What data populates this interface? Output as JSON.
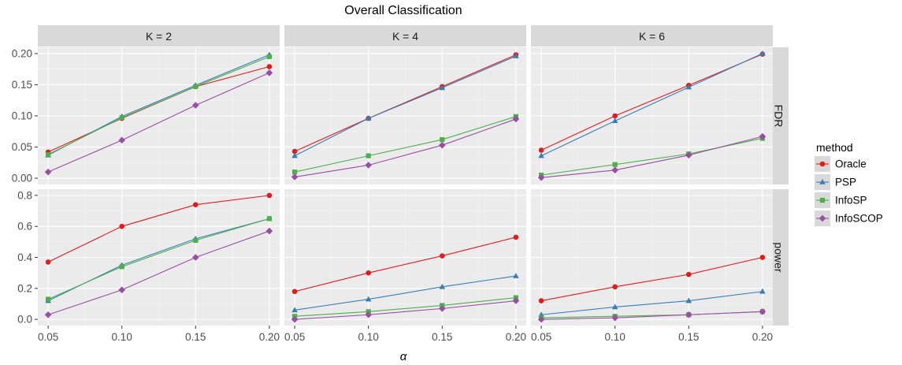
{
  "chart_data": {
    "type": "line",
    "title": "Overall Classification",
    "xlabel": "α",
    "x": [
      0.05,
      0.1,
      0.15,
      0.2
    ],
    "x_tick_labels": [
      "0.05",
      "0.10",
      "0.15",
      "0.20"
    ],
    "xlim": [
      0.043,
      0.207
    ],
    "columns": [
      "K = 2",
      "K = 4",
      "K = 6"
    ],
    "rows": [
      {
        "label": "FDR",
        "ylim": [
          -0.01,
          0.21
        ],
        "ticks": [
          0.0,
          0.05,
          0.1,
          0.15,
          0.2
        ],
        "tick_labels": [
          "0.00",
          "0.05",
          "0.10",
          "0.15",
          "0.20"
        ]
      },
      {
        "label": "power",
        "ylim": [
          -0.04,
          0.84
        ],
        "ticks": [
          0.0,
          0.2,
          0.4,
          0.6,
          0.8
        ],
        "tick_labels": [
          "0.0",
          "0.2",
          "0.4",
          "0.6",
          "0.8"
        ]
      }
    ],
    "legend": {
      "title": "method",
      "position": "right"
    },
    "series": [
      {
        "name": "Oracle",
        "color": "#e41a1c",
        "marker": "circle"
      },
      {
        "name": "PSP",
        "color": "#377eb8",
        "marker": "triangle"
      },
      {
        "name": "InfoSP",
        "color": "#4daf4a",
        "marker": "square"
      },
      {
        "name": "InfoSCOP",
        "color": "#984ea3",
        "marker": "diamond"
      }
    ],
    "panels": [
      {
        "row": "FDR",
        "column": "K = 2",
        "values": {
          "Oracle": [
            0.042,
            0.096,
            0.147,
            0.179
          ],
          "PSP": [
            0.037,
            0.099,
            0.149,
            0.198
          ],
          "InfoSP": [
            0.038,
            0.097,
            0.147,
            0.195
          ],
          "InfoSCOP": [
            0.01,
            0.061,
            0.117,
            0.169
          ]
        }
      },
      {
        "row": "FDR",
        "column": "K = 4",
        "values": {
          "Oracle": [
            0.043,
            0.096,
            0.147,
            0.198
          ],
          "PSP": [
            0.036,
            0.096,
            0.145,
            0.196
          ],
          "InfoSP": [
            0.01,
            0.036,
            0.062,
            0.099
          ],
          "InfoSCOP": [
            0.002,
            0.021,
            0.053,
            0.095
          ]
        }
      },
      {
        "row": "FDR",
        "column": "K = 6",
        "values": {
          "Oracle": [
            0.045,
            0.1,
            0.149,
            0.199
          ],
          "PSP": [
            0.036,
            0.092,
            0.146,
            0.2
          ],
          "InfoSP": [
            0.005,
            0.022,
            0.039,
            0.064
          ],
          "InfoSCOP": [
            0.001,
            0.013,
            0.037,
            0.067
          ]
        }
      },
      {
        "row": "power",
        "column": "K = 2",
        "values": {
          "Oracle": [
            0.37,
            0.6,
            0.74,
            0.8
          ],
          "PSP": [
            0.12,
            0.35,
            0.52,
            0.65
          ],
          "InfoSP": [
            0.13,
            0.34,
            0.51,
            0.65
          ],
          "InfoSCOP": [
            0.03,
            0.19,
            0.4,
            0.57
          ]
        }
      },
      {
        "row": "power",
        "column": "K = 4",
        "values": {
          "Oracle": [
            0.18,
            0.3,
            0.41,
            0.53
          ],
          "PSP": [
            0.06,
            0.13,
            0.21,
            0.28
          ],
          "InfoSP": [
            0.02,
            0.05,
            0.09,
            0.14
          ],
          "InfoSCOP": [
            0.0,
            0.03,
            0.07,
            0.12
          ]
        }
      },
      {
        "row": "power",
        "column": "K = 6",
        "values": {
          "Oracle": [
            0.12,
            0.21,
            0.29,
            0.4
          ],
          "PSP": [
            0.03,
            0.08,
            0.12,
            0.18
          ],
          "InfoSP": [
            0.01,
            0.02,
            0.03,
            0.05
          ],
          "InfoSCOP": [
            0.0,
            0.01,
            0.03,
            0.05
          ]
        }
      }
    ],
    "grid": true,
    "panel_background": "#ebebeb",
    "strip_background": "#d9d9d9"
  }
}
